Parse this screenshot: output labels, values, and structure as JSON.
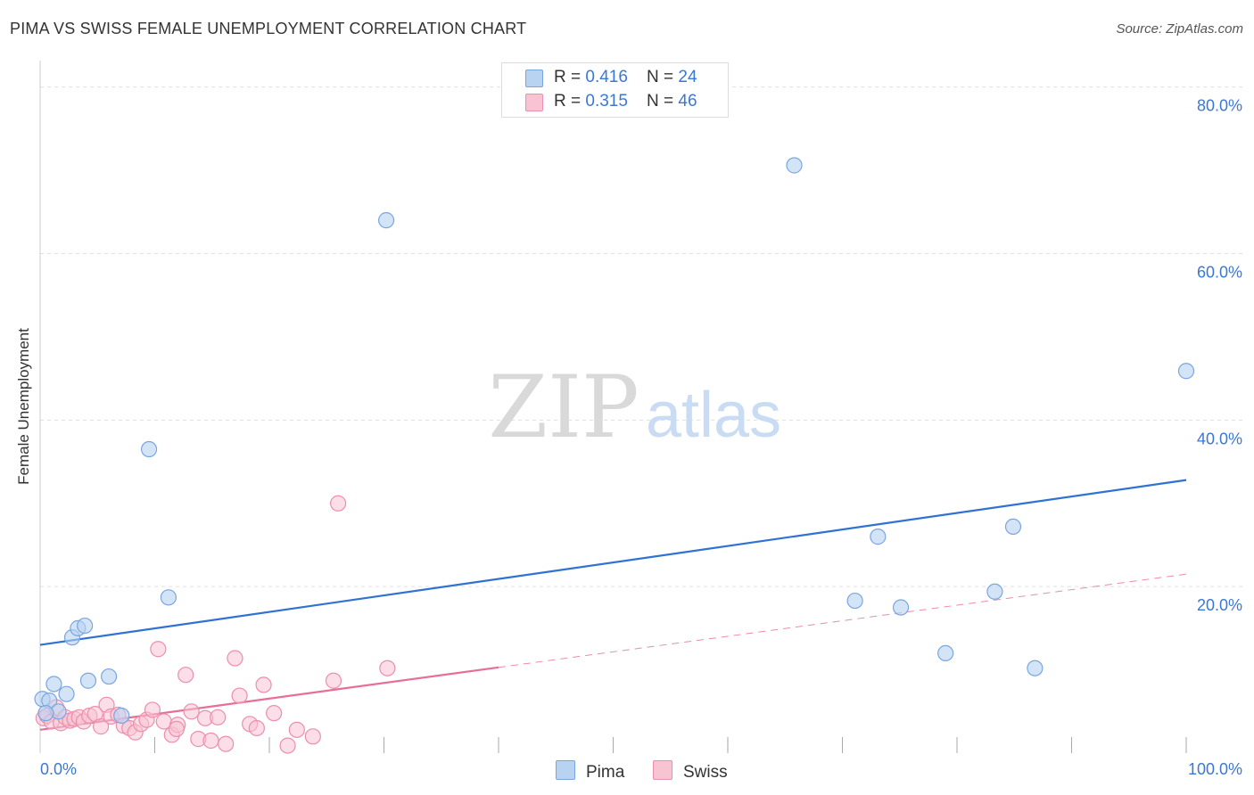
{
  "title": "PIMA VS SWISS FEMALE UNEMPLOYMENT CORRELATION CHART",
  "source": "Source: ZipAtlas.com",
  "watermark": {
    "zip": "ZIP",
    "atlas": "atlas"
  },
  "colors": {
    "pima_fill": "#b8d2f2",
    "pima_stroke": "#7aa6e0",
    "pima_line": "#2f72d4",
    "swiss_fill": "#f8c3d3",
    "swiss_stroke": "#eb8fac",
    "swiss_line": "#e76e96",
    "tick_label": "#3a78d6",
    "grid": "#e0e0e0"
  },
  "legend": {
    "pima": {
      "r_label": "R = ",
      "r_value": "0.416",
      "n_label": "N = ",
      "n_value": "24"
    },
    "swiss": {
      "r_label": "R = ",
      "r_value": "0.315",
      "n_label": "N = ",
      "n_value": "46"
    }
  },
  "bottom_legend": {
    "pima": "Pima",
    "swiss": "Swiss"
  },
  "chart_data": {
    "type": "scatter",
    "title": "PIMA VS SWISS FEMALE UNEMPLOYMENT CORRELATION CHART",
    "xlabel": "",
    "ylabel": "Female Unemployment",
    "xlim": [
      0,
      100
    ],
    "ylim": [
      0,
      82
    ],
    "x_tick_labels": [
      "0.0%",
      "100.0%"
    ],
    "y_ticks": [
      20,
      40,
      60,
      80
    ],
    "y_tick_labels": [
      "20.0%",
      "40.0%",
      "60.0%",
      "80.0%"
    ],
    "series": [
      {
        "name": "Pima",
        "r": 0.416,
        "n": 24,
        "trend": {
          "x0": 0,
          "y0": 13.0,
          "x1": 100,
          "y1": 32.8
        },
        "points": [
          [
            0.2,
            6.5
          ],
          [
            0.8,
            6.3
          ],
          [
            1.2,
            8.3
          ],
          [
            1.6,
            5.0
          ],
          [
            2.3,
            7.1
          ],
          [
            2.8,
            13.9
          ],
          [
            3.3,
            15.0
          ],
          [
            3.9,
            15.3
          ],
          [
            4.2,
            8.7
          ],
          [
            6.0,
            9.2
          ],
          [
            7.1,
            4.5
          ],
          [
            9.5,
            36.5
          ],
          [
            11.2,
            18.7
          ],
          [
            30.2,
            64.0
          ],
          [
            65.8,
            70.6
          ],
          [
            71.1,
            18.3
          ],
          [
            73.1,
            26.0
          ],
          [
            75.1,
            17.5
          ],
          [
            79.0,
            12.0
          ],
          [
            83.3,
            19.4
          ],
          [
            84.9,
            27.2
          ],
          [
            86.8,
            10.2
          ],
          [
            100.0,
            45.9
          ],
          [
            0.5,
            4.8
          ]
        ]
      },
      {
        "name": "Swiss",
        "r": 0.315,
        "n": 46,
        "trend": {
          "x0": 0,
          "y0": 2.8,
          "x1": 40,
          "y1": 10.3,
          "dash_x1": 100,
          "dash_y1": 21.5
        },
        "points": [
          [
            0.3,
            4.2
          ],
          [
            0.6,
            4.5
          ],
          [
            1.0,
            3.8
          ],
          [
            1.4,
            5.5
          ],
          [
            1.8,
            3.6
          ],
          [
            2.2,
            4.3
          ],
          [
            2.6,
            3.9
          ],
          [
            3.0,
            4.1
          ],
          [
            3.4,
            4.3
          ],
          [
            3.8,
            3.8
          ],
          [
            4.3,
            4.5
          ],
          [
            4.8,
            4.7
          ],
          [
            5.3,
            3.2
          ],
          [
            5.8,
            5.8
          ],
          [
            6.2,
            4.4
          ],
          [
            6.8,
            4.6
          ],
          [
            7.3,
            3.3
          ],
          [
            7.8,
            3.0
          ],
          [
            8.3,
            2.5
          ],
          [
            8.8,
            3.5
          ],
          [
            9.3,
            4.0
          ],
          [
            9.8,
            5.2
          ],
          [
            10.3,
            12.5
          ],
          [
            10.8,
            3.8
          ],
          [
            11.5,
            2.2
          ],
          [
            12.0,
            3.4
          ],
          [
            12.7,
            9.4
          ],
          [
            13.2,
            5.0
          ],
          [
            13.8,
            1.7
          ],
          [
            14.4,
            4.2
          ],
          [
            14.9,
            1.5
          ],
          [
            15.5,
            4.3
          ],
          [
            16.2,
            1.1
          ],
          [
            17.0,
            11.4
          ],
          [
            17.4,
            6.9
          ],
          [
            18.3,
            3.5
          ],
          [
            18.9,
            3.0
          ],
          [
            19.5,
            8.2
          ],
          [
            20.4,
            4.8
          ],
          [
            21.6,
            0.9
          ],
          [
            22.4,
            2.8
          ],
          [
            23.8,
            2.0
          ],
          [
            25.6,
            8.7
          ],
          [
            26.0,
            30.0
          ],
          [
            30.3,
            10.2
          ],
          [
            11.9,
            2.9
          ]
        ]
      }
    ]
  }
}
